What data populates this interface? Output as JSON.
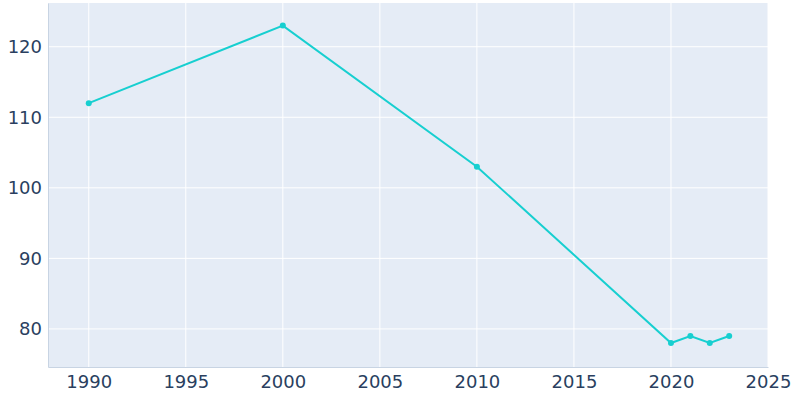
{
  "chart_data": {
    "type": "line",
    "x": [
      1990,
      2000,
      2010,
      2020,
      2021,
      2022,
      2023
    ],
    "values": [
      112,
      123,
      103,
      78,
      79,
      78,
      79
    ],
    "color": "#17cfd0",
    "marker": "circle",
    "xlim": [
      1987.9,
      2025
    ],
    "xticks": [
      1990,
      1995,
      2000,
      2005,
      2010,
      2015,
      2020,
      2025
    ],
    "ylim": [
      74.6,
      126.2
    ],
    "yticks": [
      80,
      90,
      100,
      110,
      120
    ],
    "grid": true
  }
}
